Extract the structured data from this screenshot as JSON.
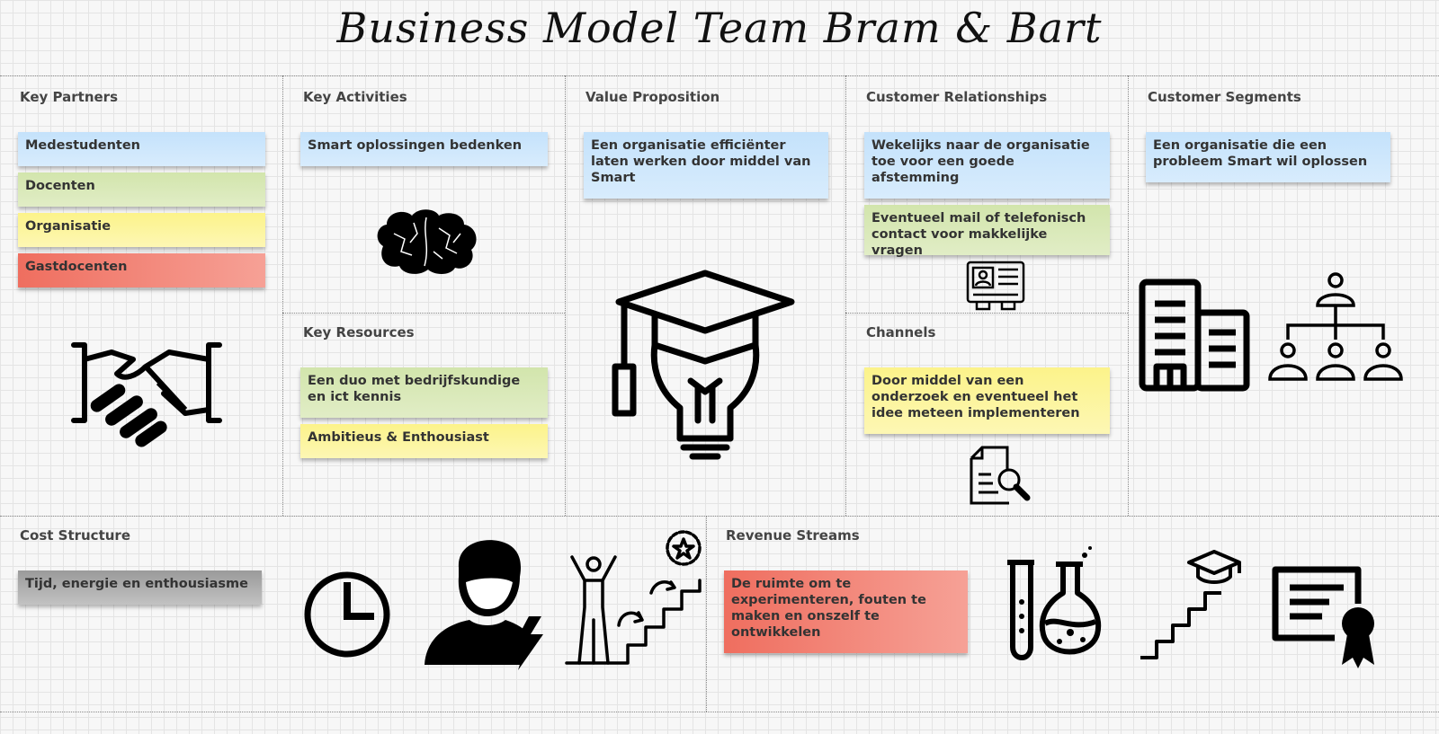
{
  "title": "Business Model Team Bram & Bart",
  "sections": {
    "key_partners": "Key Partners",
    "key_activities": "Key Activities",
    "key_resources": "Key Resources",
    "value_proposition": "Value Proposition",
    "customer_relationships": "Customer Relationships",
    "channels": "Channels",
    "customer_segments": "Customer Segments",
    "cost_structure": "Cost Structure",
    "revenue_streams": "Revenue Streams"
  },
  "notes": {
    "key_partners": [
      "Medestudenten",
      "Docenten",
      "Organisatie",
      "Gastdocenten"
    ],
    "key_activities": [
      "Smart oplossingen bedenken"
    ],
    "key_resources": [
      "Een duo met bedrijfskundige en ict kennis",
      "Ambitieus & Enthousiast"
    ],
    "value_proposition": [
      "Een organisatie efficiënter laten werken door middel van Smart"
    ],
    "customer_relationships": [
      "Wekelijks naar de organisatie toe voor een goede afstemming",
      "Eventueel mail of telefonisch contact voor makkelijke vragen"
    ],
    "channels": [
      "Door middel van een onderzoek en eventueel het idee meteen implementeren"
    ],
    "customer_segments": [
      "Een organisatie die een probleem Smart wil oplossen"
    ],
    "cost_structure": [
      "Tijd, energie en enthousiasme"
    ],
    "revenue_streams": [
      "De ruimte om te experimenteren, fouten te maken en onszelf te ontwikkelen"
    ]
  },
  "icons": [
    "handshake-icon",
    "brain-icon",
    "graduation-bulb-icon",
    "id-card-icon",
    "document-search-icon",
    "building-icon",
    "hierarchy-icon",
    "clock-icon",
    "person-energy-icon",
    "success-stairs-icon",
    "lab-flasks-icon",
    "education-stairs-icon",
    "certificate-icon"
  ],
  "colors": {
    "blue": "#c9e4fb",
    "green": "#d6e8b4",
    "yellow": "#fcf48f",
    "red": "#f07c6e",
    "gray": "#a8a8a8"
  }
}
